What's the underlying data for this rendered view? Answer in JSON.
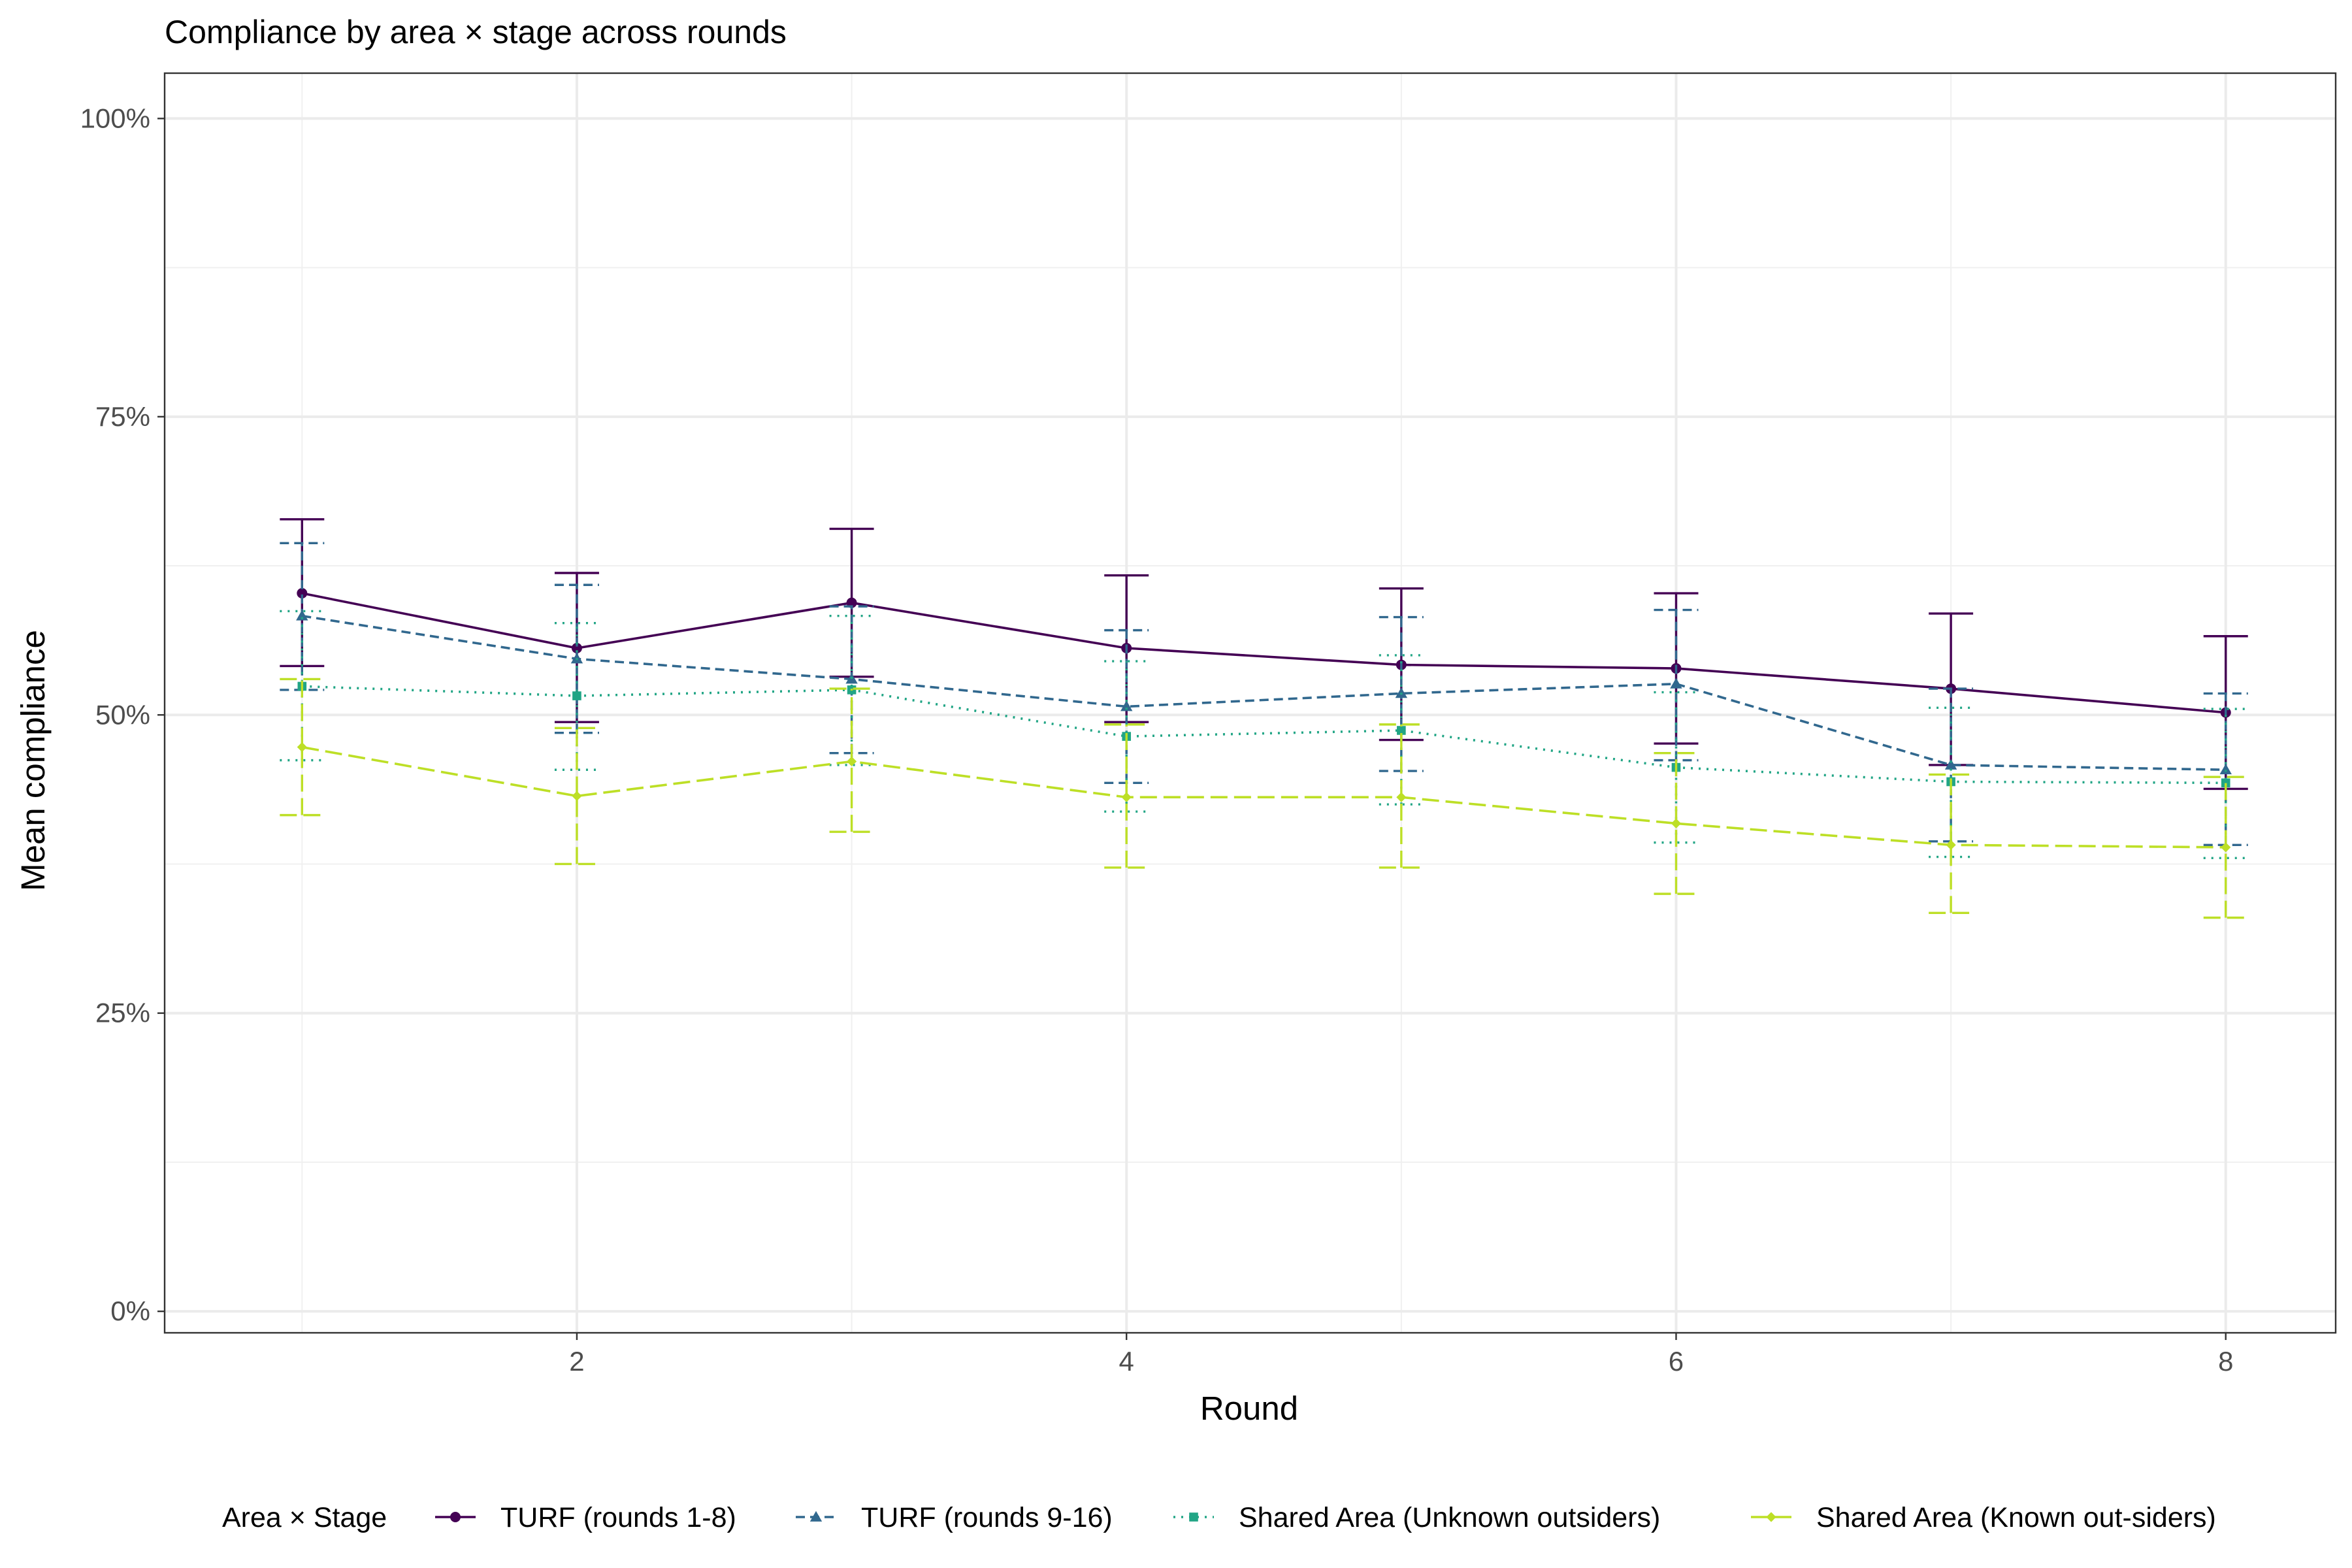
{
  "chart_data": {
    "type": "line",
    "title": "Compliance by area × stage across rounds",
    "xlabel": "Round",
    "ylabel": "Mean compliance",
    "x": [
      1,
      2,
      3,
      4,
      5,
      6,
      7,
      8
    ],
    "xlim": [
      0.5,
      8.4
    ],
    "ylim": [
      -0.018,
      1.038
    ],
    "x_ticks": [
      2,
      4,
      6,
      8
    ],
    "x_tick_labels": [
      "2",
      "4",
      "6",
      "8"
    ],
    "y_ticks": [
      0,
      0.25,
      0.5,
      0.75,
      1.0
    ],
    "y_tick_labels": [
      "0%",
      "25%",
      "50%",
      "75%",
      "100%"
    ],
    "grid": true,
    "legend_position": "bottom",
    "legend_title": "Area × Stage",
    "series": [
      {
        "name": "TURF (rounds 1-8)",
        "color": "#440154",
        "marker": "circle",
        "linestyle": "solid",
        "values": [
          0.602,
          0.556,
          0.594,
          0.556,
          0.542,
          0.539,
          0.522,
          0.502
        ],
        "lower": [
          0.541,
          0.494,
          0.532,
          0.494,
          0.479,
          0.476,
          0.458,
          0.438
        ],
        "upper": [
          0.664,
          0.619,
          0.656,
          0.617,
          0.606,
          0.602,
          0.585,
          0.566
        ]
      },
      {
        "name": "TURF (rounds 9-16)",
        "color": "#31688E",
        "marker": "triangle",
        "linestyle": "dashed",
        "values": [
          0.583,
          0.547,
          0.53,
          0.507,
          0.518,
          0.526,
          0.458,
          0.454
        ],
        "lower": [
          0.521,
          0.485,
          0.468,
          0.443,
          0.453,
          0.462,
          0.394,
          0.391
        ],
        "upper": [
          0.644,
          0.609,
          0.591,
          0.571,
          0.582,
          0.588,
          0.522,
          0.518
        ]
      },
      {
        "name": "Shared Area (Unknown outsiders)",
        "color": "#21A585",
        "marker": "square",
        "linestyle": "dotted",
        "values": [
          0.524,
          0.516,
          0.521,
          0.482,
          0.487,
          0.456,
          0.444,
          0.443
        ],
        "lower": [
          0.462,
          0.454,
          0.458,
          0.419,
          0.425,
          0.393,
          0.381,
          0.38
        ],
        "upper": [
          0.587,
          0.577,
          0.583,
          0.545,
          0.55,
          0.519,
          0.506,
          0.505
        ]
      },
      {
        "name": "Shared Area (Known out-siders)",
        "color": "#BDDF26",
        "marker": "diamond",
        "linestyle": "longdash",
        "values": [
          0.473,
          0.432,
          0.461,
          0.431,
          0.431,
          0.409,
          0.391,
          0.389
        ],
        "lower": [
          0.416,
          0.375,
          0.402,
          0.372,
          0.372,
          0.35,
          0.334,
          0.33
        ],
        "upper": [
          0.53,
          0.489,
          0.522,
          0.492,
          0.492,
          0.468,
          0.45,
          0.448
        ]
      }
    ]
  }
}
